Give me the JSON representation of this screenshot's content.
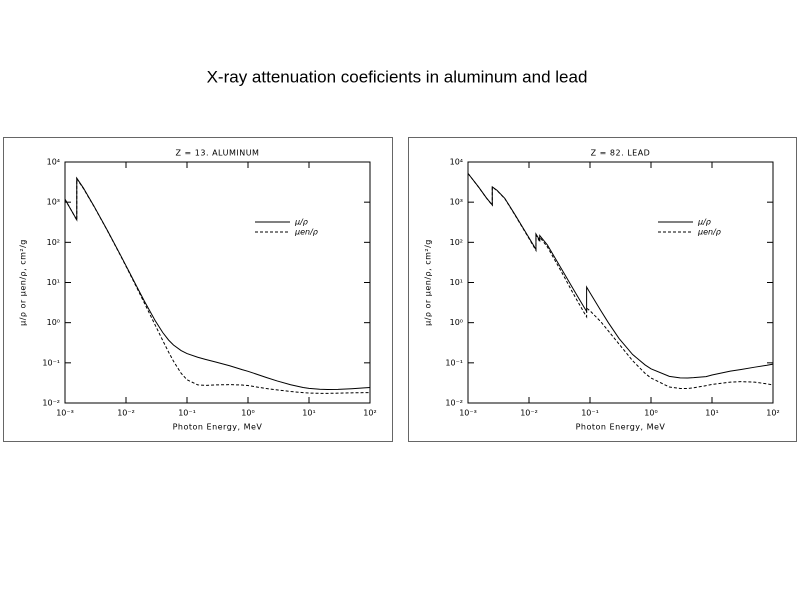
{
  "title": "X-ray attenuation coeficients in aluminum and lead",
  "chart_data": [
    {
      "type": "line",
      "title": "Z = 13.  ALUMINUM",
      "xlabel": "Photon Energy, MeV",
      "ylabel": "μ/ρ  or  μen/ρ,  cm²/g",
      "xscale": "log",
      "yscale": "log",
      "legend": "upper right",
      "xlim": [
        0.001,
        100
      ],
      "ylim": [
        0.01,
        10000
      ],
      "xticks": [
        {
          "value": 0.001,
          "label": "10⁻³"
        },
        {
          "value": 0.01,
          "label": "10⁻²"
        },
        {
          "value": 0.1,
          "label": "10⁻¹"
        },
        {
          "value": 1,
          "label": "10⁰"
        },
        {
          "value": 10,
          "label": "10¹"
        },
        {
          "value": 100,
          "label": "10²"
        }
      ],
      "yticks": [
        {
          "value": 0.01,
          "label": "10⁻²"
        },
        {
          "value": 0.1,
          "label": "10⁻¹"
        },
        {
          "value": 1,
          "label": "10⁰"
        },
        {
          "value": 10,
          "label": "10¹"
        },
        {
          "value": 100,
          "label": "10²"
        },
        {
          "value": 1000,
          "label": "10³"
        },
        {
          "value": 10000,
          "label": "10⁴"
        }
      ],
      "x": [
        0.001,
        0.0015596,
        0.0015596,
        0.002,
        0.003,
        0.005,
        0.008,
        0.01,
        0.015,
        0.02,
        0.03,
        0.04,
        0.05,
        0.06,
        0.08,
        0.1,
        0.15,
        0.2,
        0.3,
        0.5,
        0.8,
        1,
        2,
        3,
        5,
        8,
        10,
        15,
        20,
        30,
        50,
        80,
        100
      ],
      "series": [
        {
          "name": "μ/ρ",
          "color": "#000000",
          "linestyle": "solid",
          "values": [
            1185,
            362,
            3957,
            2263,
            788,
            193,
            50.3,
            26.2,
            7.96,
            3.44,
            1.13,
            0.569,
            0.368,
            0.278,
            0.202,
            0.17,
            0.138,
            0.122,
            0.104,
            0.0844,
            0.0676,
            0.0615,
            0.0432,
            0.0354,
            0.0284,
            0.0243,
            0.0232,
            0.022,
            0.0217,
            0.0219,
            0.0227,
            0.0238,
            0.0244
          ]
        },
        {
          "name": "μen/ρ",
          "color": "#000000",
          "linestyle": "dashed",
          "values": [
            1183,
            360,
            3829,
            2204,
            773,
            190,
            49.0,
            25.4,
            7.49,
            3.09,
            0.878,
            0.361,
            0.184,
            0.11,
            0.0551,
            0.0379,
            0.0283,
            0.0275,
            0.0282,
            0.0287,
            0.028,
            0.0272,
            0.0229,
            0.0212,
            0.0193,
            0.0181,
            0.0177,
            0.0174,
            0.0174,
            0.0176,
            0.0179,
            0.0181,
            0.0181
          ]
        }
      ]
    },
    {
      "type": "line",
      "title": "Z = 82.  LEAD",
      "xlabel": "Photon Energy, MeV",
      "ylabel": "μ/ρ  or  μen/ρ,  cm²/g",
      "xscale": "log",
      "yscale": "log",
      "legend": "upper right",
      "xlim": [
        0.001,
        100
      ],
      "ylim": [
        0.01,
        10000
      ],
      "xticks": [
        {
          "value": 0.001,
          "label": "10⁻³"
        },
        {
          "value": 0.01,
          "label": "10⁻²"
        },
        {
          "value": 0.1,
          "label": "10⁻¹"
        },
        {
          "value": 1,
          "label": "10⁰"
        },
        {
          "value": 10,
          "label": "10¹"
        },
        {
          "value": 100,
          "label": "10²"
        }
      ],
      "yticks": [
        {
          "value": 0.01,
          "label": "10⁻²"
        },
        {
          "value": 0.1,
          "label": "10⁻¹"
        },
        {
          "value": 1,
          "label": "10⁰"
        },
        {
          "value": 10,
          "label": "10¹"
        },
        {
          "value": 100,
          "label": "10²"
        },
        {
          "value": 1000,
          "label": "10³"
        },
        {
          "value": 10000,
          "label": "10⁴"
        }
      ],
      "x": [
        0.001,
        0.0015,
        0.002,
        0.0025,
        0.0025,
        0.003,
        0.004,
        0.005,
        0.006,
        0.008,
        0.01,
        0.013,
        0.013,
        0.015,
        0.015,
        0.02,
        0.03,
        0.04,
        0.05,
        0.06,
        0.08,
        0.088,
        0.088,
        0.1,
        0.15,
        0.2,
        0.3,
        0.5,
        0.8,
        1,
        2,
        3,
        4,
        5,
        8,
        10,
        20,
        30,
        50,
        80,
        100
      ],
      "series": [
        {
          "name": "μ/ρ",
          "color": "#000000",
          "linestyle": "solid",
          "values": [
            5210,
            2356,
            1285,
            850,
            2400,
            1965,
            1251,
            730,
            467,
            228,
            130,
            66.7,
            162,
            112,
            148,
            86.4,
            30.3,
            14.4,
            8.04,
            5.02,
            2.42,
            1.91,
            7.68,
            5.55,
            2.01,
            0.999,
            0.403,
            0.161,
            0.0887,
            0.071,
            0.0461,
            0.0423,
            0.042,
            0.0427,
            0.0455,
            0.0497,
            0.0621,
            0.0682,
            0.0779,
            0.087,
            0.093
          ]
        },
        {
          "name": "μen/ρ",
          "color": "#000000",
          "linestyle": "dashed",
          "values": [
            5197,
            2344,
            1274,
            840,
            2370,
            1940,
            1232,
            716,
            456,
            220,
            125,
            62.9,
            152,
            104,
            136,
            77.0,
            26.0,
            11.8,
            6.29,
            3.81,
            1.78,
            1.4,
            2.3,
            1.98,
            1.06,
            0.622,
            0.292,
            0.113,
            0.0548,
            0.0419,
            0.025,
            0.023,
            0.023,
            0.024,
            0.027,
            0.029,
            0.033,
            0.034,
            0.033,
            0.03,
            0.028
          ]
        }
      ]
    }
  ]
}
